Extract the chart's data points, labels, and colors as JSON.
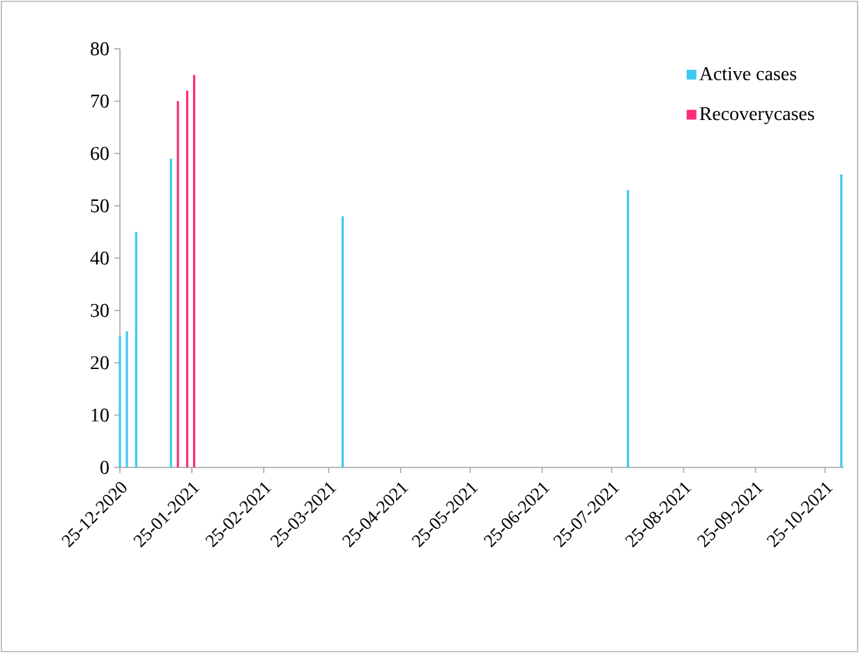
{
  "chart_data": {
    "type": "bar",
    "x": [
      "2020-12-25",
      "2020-12-28",
      "2021-01-01",
      "2021-01-16",
      "2021-01-19",
      "2021-01-23",
      "2021-01-26",
      "2021-03-31",
      "2021-08-01",
      "2021-11-01"
    ],
    "series": [
      {
        "name": "Active cases",
        "color": "#3cc8f4",
        "values": [
          25,
          26,
          45,
          59,
          null,
          null,
          null,
          48,
          53,
          56
        ]
      },
      {
        "name": "Recoverycases",
        "color": "#ff2d7a",
        "values": [
          null,
          null,
          null,
          null,
          70,
          72,
          75,
          null,
          null,
          null
        ]
      }
    ],
    "xlim": [
      "2020-12-25",
      "2021-11-02"
    ],
    "xticks": [
      {
        "value": "2020-12-25",
        "label": "25-12-2020"
      },
      {
        "value": "2021-01-25",
        "label": "25-01-2021"
      },
      {
        "value": "2021-02-25",
        "label": "25-02-2021"
      },
      {
        "value": "2021-03-25",
        "label": "25-03-2021"
      },
      {
        "value": "2021-04-25",
        "label": "25-04-2021"
      },
      {
        "value": "2021-05-25",
        "label": "25-05-2021"
      },
      {
        "value": "2021-06-25",
        "label": "25-06-2021"
      },
      {
        "value": "2021-07-25",
        "label": "25-07-2021"
      },
      {
        "value": "2021-08-25",
        "label": "25-08-2021"
      },
      {
        "value": "2021-09-25",
        "label": "25-09-2021"
      },
      {
        "value": "2021-10-25",
        "label": "25-10-2021"
      }
    ],
    "ylim": [
      0,
      80
    ],
    "yticks": [
      0,
      10,
      20,
      30,
      40,
      50,
      60,
      70,
      80
    ],
    "grid": false,
    "legend": "top right"
  }
}
